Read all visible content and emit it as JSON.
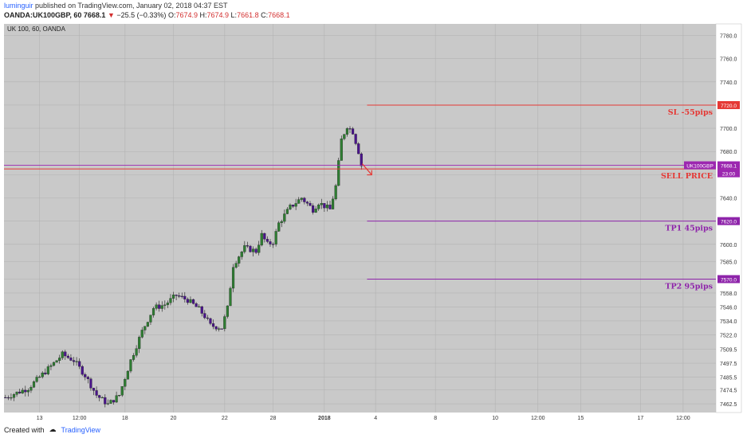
{
  "header": {
    "author": "luminguir",
    "published_text": "published on TradingView.com, January 02, 2018 04:37 EST",
    "symbol_line": "OANDA:UK100GBP, 60",
    "last": "7668.1",
    "change": "−25.5 (−0.33%)",
    "o_label": "O:",
    "o": "7674.9",
    "h_label": "H:",
    "h": "7674.9",
    "l_label": "L:",
    "l": "7661.8",
    "c_label": "C:",
    "c": "7668.1"
  },
  "chart_title": "UK 100, 60, OANDA",
  "footer": {
    "created_with": "Created with",
    "brand": "TradingView"
  },
  "colors": {
    "background": "#c9c9c9",
    "up": "#2e7d32",
    "down": "#4a148c",
    "red_line": "#e53935",
    "purple_line": "#9c27b0"
  },
  "chart_data": {
    "type": "candlestick",
    "title": "UK 100, 60, OANDA",
    "ylim": [
      7455,
      7790
    ],
    "y_ticks": [
      "7780.0",
      "7760.0",
      "7740.0",
      "7720.0",
      "7700.0",
      "7680.0",
      "7660.0",
      "7640.0",
      "7620.0",
      "7600.0",
      "7585.0",
      "7570.0",
      "7558.0",
      "7546.0",
      "7534.0",
      "7522.0",
      "7509.5",
      "7497.5",
      "7485.5",
      "7474.5",
      "7462.5"
    ],
    "x_ticks": [
      "13",
      "12:00",
      "18",
      "20",
      "22",
      "28",
      "2018",
      "4",
      "8",
      "10",
      "12:00",
      "15",
      "17",
      "12:00"
    ],
    "x_tick_index": [
      12,
      26,
      42,
      59,
      77,
      94,
      112,
      130,
      151,
      172,
      187,
      202,
      223,
      238
    ],
    "price_path": [
      [
        0,
        7468
      ],
      [
        8,
        7476
      ],
      [
        16,
        7495
      ],
      [
        20,
        7505
      ],
      [
        24,
        7500
      ],
      [
        28,
        7487
      ],
      [
        32,
        7470
      ],
      [
        36,
        7462
      ],
      [
        40,
        7470
      ],
      [
        44,
        7500
      ],
      [
        48,
        7525
      ],
      [
        52,
        7545
      ],
      [
        56,
        7548
      ],
      [
        60,
        7556
      ],
      [
        64,
        7552
      ],
      [
        68,
        7544
      ],
      [
        70,
        7538
      ],
      [
        72,
        7530
      ],
      [
        76,
        7528
      ],
      [
        78,
        7545
      ],
      [
        80,
        7582
      ],
      [
        82,
        7590
      ],
      [
        84,
        7597
      ],
      [
        88,
        7594
      ],
      [
        90,
        7608
      ],
      [
        92,
        7600
      ],
      [
        94,
        7602
      ],
      [
        96,
        7618
      ],
      [
        100,
        7632
      ],
      [
        104,
        7640
      ],
      [
        108,
        7630
      ],
      [
        110,
        7636
      ],
      [
        114,
        7630
      ],
      [
        116,
        7650
      ],
      [
        118,
        7690
      ],
      [
        120,
        7702
      ],
      [
        122,
        7697
      ],
      [
        124,
        7680
      ],
      [
        125,
        7668
      ]
    ],
    "last_index": 125,
    "lines": [
      {
        "name": "SL -55pips",
        "value": 7720.0,
        "color": "#e53935",
        "x_start_index": 127
      },
      {
        "name": "SELL PRICE",
        "value": 7665.0,
        "color": "#e53935",
        "x_start_index": 0
      },
      {
        "name": "TP1 45pips",
        "value": 7620.0,
        "color": "#8e24aa",
        "x_start_index": 127
      },
      {
        "name": "TP2 95pips",
        "value": 7570.0,
        "color": "#8e24aa",
        "x_start_index": 127
      }
    ],
    "current_price": {
      "symbol": "UK100GBP",
      "value": 7668.1,
      "label": "7668.1",
      "countdown": "23:00"
    }
  }
}
